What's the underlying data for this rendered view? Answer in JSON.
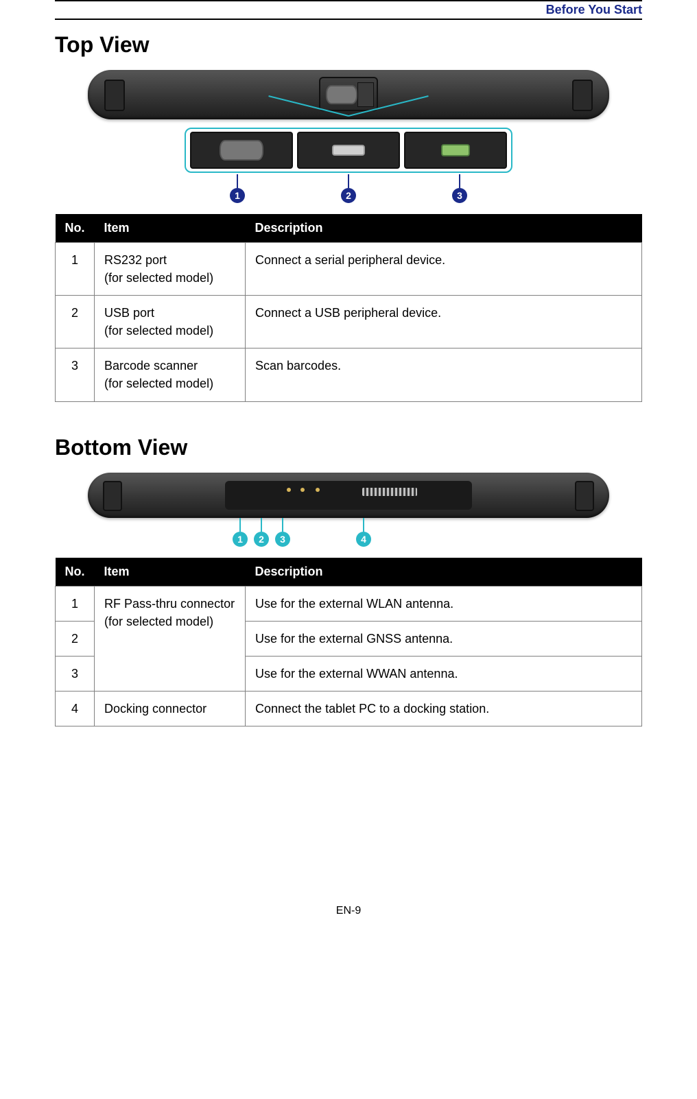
{
  "header": {
    "section": "Before You Start"
  },
  "footer": {
    "page": "EN-9"
  },
  "colors": {
    "header_text": "#1a2a8a",
    "badge_navy": "#1a2a8a",
    "badge_teal": "#29b8c7",
    "table_header_bg": "#000000",
    "table_header_fg": "#ffffff",
    "table_border": "#808080"
  },
  "top_view": {
    "heading": "Top View",
    "table": {
      "columns": [
        "No.",
        "Item",
        "Description"
      ],
      "rows": [
        {
          "no": "1",
          "item": "RS232 port\n(for selected model)",
          "desc": "Connect a serial peripheral device."
        },
        {
          "no": "2",
          "item": "USB port\n(for selected model)",
          "desc": "Connect a USB peripheral device."
        },
        {
          "no": "3",
          "item": "Barcode scanner\n(for selected model)",
          "desc": "Scan barcodes."
        }
      ]
    },
    "callouts": [
      "1",
      "2",
      "3"
    ]
  },
  "bottom_view": {
    "heading": "Bottom View",
    "table": {
      "columns": [
        "No.",
        "Item",
        "Description"
      ],
      "merged_item": "RF Pass-thru connector\n(for selected model)",
      "rows": [
        {
          "no": "1",
          "desc": "Use for the external WLAN antenna."
        },
        {
          "no": "2",
          "desc": "Use for the external GNSS antenna."
        },
        {
          "no": "3",
          "desc": "Use for the external WWAN antenna."
        },
        {
          "no": "4",
          "item": "Docking connector",
          "desc": "Connect the tablet PC to a docking station."
        }
      ]
    },
    "callouts": [
      "1",
      "2",
      "3",
      "4"
    ]
  }
}
